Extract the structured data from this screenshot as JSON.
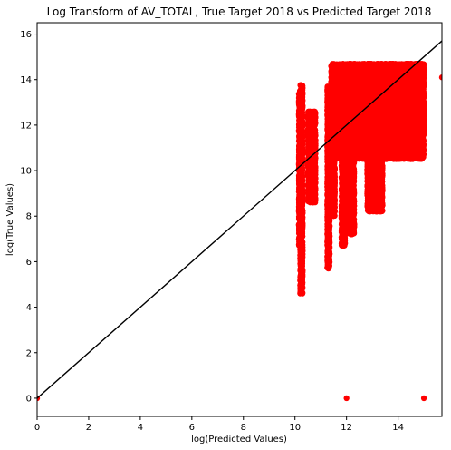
{
  "chart_data": {
    "type": "scatter",
    "title": "Log Transform of AV_TOTAL, True Target 2018 vs Predicted Target 2018",
    "xlabel": "log(Predicted Values)",
    "ylabel": "log(True Values)",
    "xlim": [
      0,
      15.7
    ],
    "ylim": [
      -0.8,
      16.5
    ],
    "xticks": [
      "0",
      "2",
      "4",
      "6",
      "8",
      "10",
      "12",
      "14"
    ],
    "yticks": [
      "0",
      "2",
      "4",
      "6",
      "8",
      "10",
      "12",
      "14",
      "16"
    ],
    "grid": false,
    "point_color": "#ff0000",
    "line_color": "#000000",
    "reference_line": {
      "x": [
        0,
        15.7
      ],
      "y": [
        0,
        15.7
      ]
    },
    "scatter_regions": [
      {
        "x": [
          10.15,
          10.25
        ],
        "y": [
          6.7,
          13.6
        ]
      },
      {
        "x": [
          10.2,
          10.3
        ],
        "y": [
          4.6,
          13.8
        ]
      },
      {
        "x": [
          10.5,
          10.8
        ],
        "y": [
          8.6,
          12.6
        ]
      },
      {
        "x": [
          11.25,
          11.35
        ],
        "y": [
          5.7,
          13.7
        ]
      },
      {
        "x": [
          11.45,
          11.55
        ],
        "y": [
          8.0,
          14.6
        ]
      },
      {
        "x": [
          11.8,
          11.95
        ],
        "y": [
          6.7,
          14.5
        ]
      },
      {
        "x": [
          12.1,
          12.3
        ],
        "y": [
          7.2,
          14.5
        ]
      },
      {
        "x": [
          11.4,
          15.0
        ],
        "y": [
          10.5,
          14.7
        ]
      },
      {
        "x": [
          12.6,
          15.0
        ],
        "y": [
          11.5,
          14.7
        ]
      },
      {
        "x": [
          12.8,
          13.4
        ],
        "y": [
          8.2,
          11.5
        ]
      }
    ],
    "outliers": [
      {
        "x": 0.0,
        "y": 0.0
      },
      {
        "x": 12.0,
        "y": 0.0
      },
      {
        "x": 15.0,
        "y": 0.0
      },
      {
        "x": 15.7,
        "y": 14.1
      },
      {
        "x": 10.2,
        "y": 4.6
      },
      {
        "x": 11.3,
        "y": 5.7
      },
      {
        "x": 12.2,
        "y": 7.2
      },
      {
        "x": 13.3,
        "y": 8.2
      },
      {
        "x": 11.9,
        "y": 6.7
      },
      {
        "x": 14.0,
        "y": 12.3
      }
    ]
  }
}
